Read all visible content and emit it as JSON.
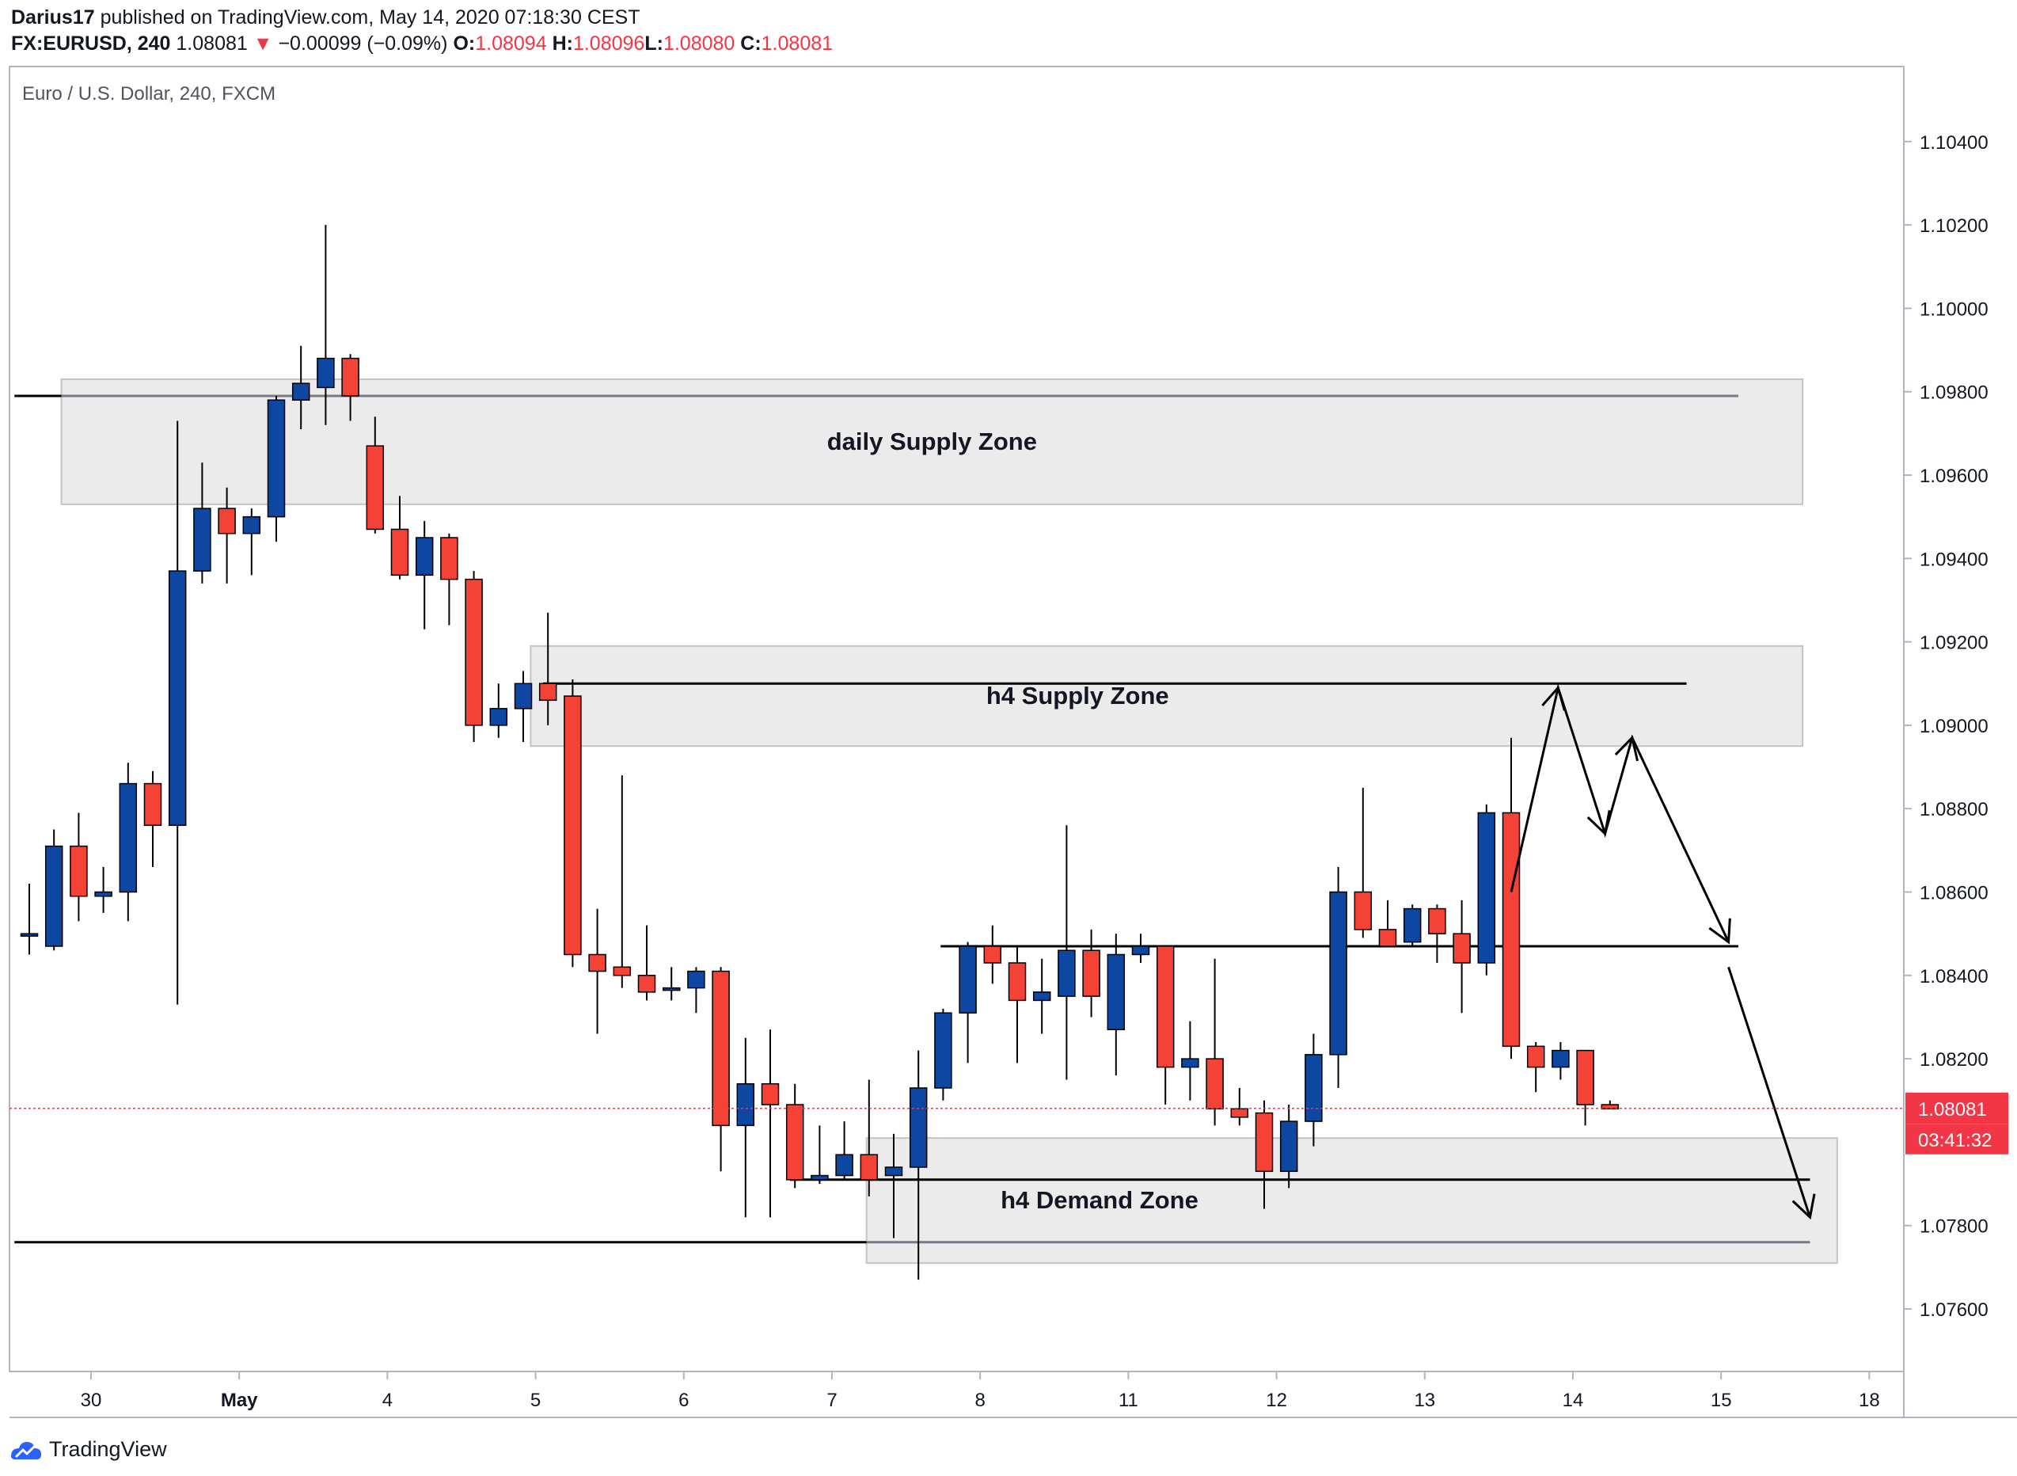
{
  "header": {
    "publisher": "Darius17",
    "published_text": "published on TradingView.com, May 14, 2020 07:18:30 CEST",
    "symbol": "FX:EURUSD, 240",
    "last": "1.08081",
    "change_arrow": "▼",
    "change": "−0.00099 (−0.09%)",
    "o_label": "O:",
    "o_value": "1.08094",
    "h_label": "H:",
    "h_value": "1.08096",
    "l_label": "L:",
    "l_value": "1.08080",
    "c_label": "C:",
    "c_value": "1.08081"
  },
  "footer": {
    "brand": "TradingView",
    "logo_icon": "tradingview-logo-icon"
  },
  "chart_data": {
    "type": "candlestick",
    "title": "Euro / U.S. Dollar, 240, FXCM",
    "ylim": [
      1.0745,
      1.1058
    ],
    "y_ticks": [
      {
        "value": 1.104,
        "label": "1.10400"
      },
      {
        "value": 1.102,
        "label": "1.10200"
      },
      {
        "value": 1.1,
        "label": "1.10000"
      },
      {
        "value": 1.098,
        "label": "1.09800"
      },
      {
        "value": 1.096,
        "label": "1.09600"
      },
      {
        "value": 1.094,
        "label": "1.09400"
      },
      {
        "value": 1.092,
        "label": "1.09200"
      },
      {
        "value": 1.09,
        "label": "1.09000"
      },
      {
        "value": 1.088,
        "label": "1.08800"
      },
      {
        "value": 1.086,
        "label": "1.08600"
      },
      {
        "value": 1.084,
        "label": "1.08400"
      },
      {
        "value": 1.082,
        "label": "1.08200"
      },
      {
        "value": 1.078,
        "label": "1.07800"
      },
      {
        "value": 1.076,
        "label": "1.07600"
      }
    ],
    "x_ticks": [
      {
        "index": 2.5,
        "label": "30",
        "bold": false
      },
      {
        "index": 8.5,
        "label": "May",
        "bold": true
      },
      {
        "index": 14.5,
        "label": "4",
        "bold": false
      },
      {
        "index": 20.5,
        "label": "5",
        "bold": false
      },
      {
        "index": 26.5,
        "label": "6",
        "bold": false
      },
      {
        "index": 32.5,
        "label": "7",
        "bold": false
      },
      {
        "index": 38.5,
        "label": "8",
        "bold": false
      },
      {
        "index": 44.5,
        "label": "11",
        "bold": false
      },
      {
        "index": 50.5,
        "label": "12",
        "bold": false
      },
      {
        "index": 56.5,
        "label": "13",
        "bold": false
      },
      {
        "index": 62.5,
        "label": "14",
        "bold": false
      },
      {
        "index": 68.5,
        "label": "15",
        "bold": false
      },
      {
        "index": 74.5,
        "label": "18",
        "bold": false
      }
    ],
    "candles": [
      {
        "o": 1.085,
        "h": 1.0862,
        "l": 1.0845,
        "c": 1.085
      },
      {
        "o": 1.0847,
        "h": 1.0875,
        "l": 1.0846,
        "c": 1.0871
      },
      {
        "o": 1.0871,
        "h": 1.0879,
        "l": 1.0853,
        "c": 1.0859
      },
      {
        "o": 1.0859,
        "h": 1.0866,
        "l": 1.0855,
        "c": 1.086
      },
      {
        "o": 1.086,
        "h": 1.0891,
        "l": 1.0853,
        "c": 1.0886
      },
      {
        "o": 1.0886,
        "h": 1.0889,
        "l": 1.0866,
        "c": 1.0876
      },
      {
        "o": 1.0876,
        "h": 1.0973,
        "l": 1.0833,
        "c": 1.0937
      },
      {
        "o": 1.0937,
        "h": 1.0963,
        "l": 1.0934,
        "c": 1.0952
      },
      {
        "o": 1.0952,
        "h": 1.0957,
        "l": 1.0934,
        "c": 1.0946
      },
      {
        "o": 1.0946,
        "h": 1.0952,
        "l": 1.0936,
        "c": 1.095
      },
      {
        "o": 1.095,
        "h": 1.0979,
        "l": 1.0944,
        "c": 1.0978
      },
      {
        "o": 1.0978,
        "h": 1.0991,
        "l": 1.0971,
        "c": 1.0982
      },
      {
        "o": 1.0981,
        "h": 1.102,
        "l": 1.0972,
        "c": 1.0988
      },
      {
        "o": 1.0988,
        "h": 1.0989,
        "l": 1.0973,
        "c": 1.0979
      },
      {
        "o": 1.0967,
        "h": 1.0974,
        "l": 1.0946,
        "c": 1.0947
      },
      {
        "o": 1.0947,
        "h": 1.0955,
        "l": 1.0935,
        "c": 1.0936
      },
      {
        "o": 1.0936,
        "h": 1.0949,
        "l": 1.0923,
        "c": 1.0945
      },
      {
        "o": 1.0945,
        "h": 1.0946,
        "l": 1.0924,
        "c": 1.0935
      },
      {
        "o": 1.0935,
        "h": 1.0937,
        "l": 1.0896,
        "c": 1.09
      },
      {
        "o": 1.09,
        "h": 1.091,
        "l": 1.0897,
        "c": 1.0904
      },
      {
        "o": 1.0904,
        "h": 1.0913,
        "l": 1.0896,
        "c": 1.091
      },
      {
        "o": 1.091,
        "h": 1.0927,
        "l": 1.09,
        "c": 1.0906
      },
      {
        "o": 1.0907,
        "h": 1.0911,
        "l": 1.0842,
        "c": 1.0845
      },
      {
        "o": 1.0845,
        "h": 1.0856,
        "l": 1.0826,
        "c": 1.0841
      },
      {
        "o": 1.0842,
        "h": 1.0888,
        "l": 1.0837,
        "c": 1.084
      },
      {
        "o": 1.084,
        "h": 1.0852,
        "l": 1.0834,
        "c": 1.0836
      },
      {
        "o": 1.0837,
        "h": 1.0842,
        "l": 1.0834,
        "c": 1.0837
      },
      {
        "o": 1.0837,
        "h": 1.0842,
        "l": 1.0831,
        "c": 1.0841
      },
      {
        "o": 1.0841,
        "h": 1.0842,
        "l": 1.0793,
        "c": 1.0804
      },
      {
        "o": 1.0804,
        "h": 1.0825,
        "l": 1.0782,
        "c": 1.0814
      },
      {
        "o": 1.0814,
        "h": 1.0827,
        "l": 1.0782,
        "c": 1.0809
      },
      {
        "o": 1.0809,
        "h": 1.0814,
        "l": 1.0789,
        "c": 1.0791
      },
      {
        "o": 1.0791,
        "h": 1.0804,
        "l": 1.079,
        "c": 1.0792
      },
      {
        "o": 1.0792,
        "h": 1.0805,
        "l": 1.0791,
        "c": 1.0797
      },
      {
        "o": 1.0797,
        "h": 1.0815,
        "l": 1.0787,
        "c": 1.0791
      },
      {
        "o": 1.0792,
        "h": 1.0802,
        "l": 1.0777,
        "c": 1.0794
      },
      {
        "o": 1.0794,
        "h": 1.0822,
        "l": 1.0767,
        "c": 1.0813
      },
      {
        "o": 1.0813,
        "h": 1.0832,
        "l": 1.081,
        "c": 1.0831
      },
      {
        "o": 1.0831,
        "h": 1.0848,
        "l": 1.0819,
        "c": 1.0847
      },
      {
        "o": 1.0847,
        "h": 1.0852,
        "l": 1.0838,
        "c": 1.0843
      },
      {
        "o": 1.0843,
        "h": 1.0847,
        "l": 1.0819,
        "c": 1.0834
      },
      {
        "o": 1.0834,
        "h": 1.0844,
        "l": 1.0826,
        "c": 1.0836
      },
      {
        "o": 1.0835,
        "h": 1.0876,
        "l": 1.0815,
        "c": 1.0846
      },
      {
        "o": 1.0846,
        "h": 1.0851,
        "l": 1.083,
        "c": 1.0835
      },
      {
        "o": 1.0827,
        "h": 1.085,
        "l": 1.0816,
        "c": 1.0845
      },
      {
        "o": 1.0845,
        "h": 1.085,
        "l": 1.0843,
        "c": 1.0847
      },
      {
        "o": 1.0847,
        "h": 1.0847,
        "l": 1.0809,
        "c": 1.0818
      },
      {
        "o": 1.0818,
        "h": 1.0829,
        "l": 1.081,
        "c": 1.082
      },
      {
        "o": 1.082,
        "h": 1.0844,
        "l": 1.0804,
        "c": 1.0808
      },
      {
        "o": 1.0808,
        "h": 1.0813,
        "l": 1.0804,
        "c": 1.0806
      },
      {
        "o": 1.0807,
        "h": 1.081,
        "l": 1.0784,
        "c": 1.0793
      },
      {
        "o": 1.0793,
        "h": 1.0809,
        "l": 1.0789,
        "c": 1.0805
      },
      {
        "o": 1.0805,
        "h": 1.0826,
        "l": 1.0799,
        "c": 1.0821
      },
      {
        "o": 1.0821,
        "h": 1.0866,
        "l": 1.0813,
        "c": 1.086
      },
      {
        "o": 1.086,
        "h": 1.0885,
        "l": 1.0849,
        "c": 1.0851
      },
      {
        "o": 1.0851,
        "h": 1.0858,
        "l": 1.0847,
        "c": 1.0847
      },
      {
        "o": 1.0848,
        "h": 1.0857,
        "l": 1.0847,
        "c": 1.0856
      },
      {
        "o": 1.0856,
        "h": 1.0857,
        "l": 1.0843,
        "c": 1.085
      },
      {
        "o": 1.085,
        "h": 1.0858,
        "l": 1.0831,
        "c": 1.0843
      },
      {
        "o": 1.0843,
        "h": 1.0881,
        "l": 1.084,
        "c": 1.0879
      },
      {
        "o": 1.0879,
        "h": 1.0897,
        "l": 1.082,
        "c": 1.0823
      },
      {
        "o": 1.0823,
        "h": 1.0824,
        "l": 1.0812,
        "c": 1.0818
      },
      {
        "o": 1.0818,
        "h": 1.0824,
        "l": 1.0815,
        "c": 1.0822
      },
      {
        "o": 1.0822,
        "h": 1.0822,
        "l": 1.0804,
        "c": 1.0809
      },
      {
        "o": 1.0809,
        "h": 1.081,
        "l": 1.0808,
        "c": 1.0808
      }
    ],
    "current_price": {
      "value": 1.08081,
      "label": "1.08081",
      "countdown": "03:41:32"
    },
    "zones": [
      {
        "label": "daily Supply Zone",
        "top": 1.0983,
        "bottom": 1.0953,
        "from_index": 1.3,
        "to_index": 71.8
      },
      {
        "label": "h4 Supply Zone",
        "top": 1.0919,
        "bottom": 1.0895,
        "from_index": 20.3,
        "to_index": 71.8
      },
      {
        "label": "h4 Demand Zone",
        "top": 1.0801,
        "bottom": 1.0771,
        "from_index": 33.9,
        "to_index": 73.2
      }
    ],
    "levels": [
      {
        "value": 1.0979,
        "from_index": -0.6,
        "to_index": 1.3,
        "color": "#000000"
      },
      {
        "value": 1.0979,
        "from_index": 1.3,
        "to_index": 69.2,
        "color": "#787b86"
      },
      {
        "value": 1.091,
        "from_index": 20.8,
        "to_index": 67.1,
        "color": "#000000"
      },
      {
        "value": 1.0847,
        "from_index": 36.9,
        "to_index": 69.2,
        "color": "#000000"
      },
      {
        "value": 1.0791,
        "from_index": 30.8,
        "to_index": 72.1,
        "color": "#000000"
      },
      {
        "value": 1.0776,
        "from_index": -0.6,
        "to_index": 33.9,
        "color": "#000000"
      },
      {
        "value": 1.0776,
        "from_index": 33.9,
        "to_index": 72.1,
        "color": "#787b86"
      }
    ],
    "projection_path": [
      [
        60.0,
        1.086
      ],
      [
        61.9,
        1.0909
      ],
      [
        63.8,
        1.0874
      ],
      [
        64.9,
        1.0897
      ],
      [
        68.8,
        1.0848
      ]
    ],
    "projection_path_2": [
      [
        68.8,
        1.0842
      ],
      [
        72.1,
        1.0782
      ]
    ],
    "colors": {
      "up": "#0d47a1",
      "down": "#f44336",
      "zone": "#ebebeb",
      "price_line": "#f23645"
    }
  }
}
